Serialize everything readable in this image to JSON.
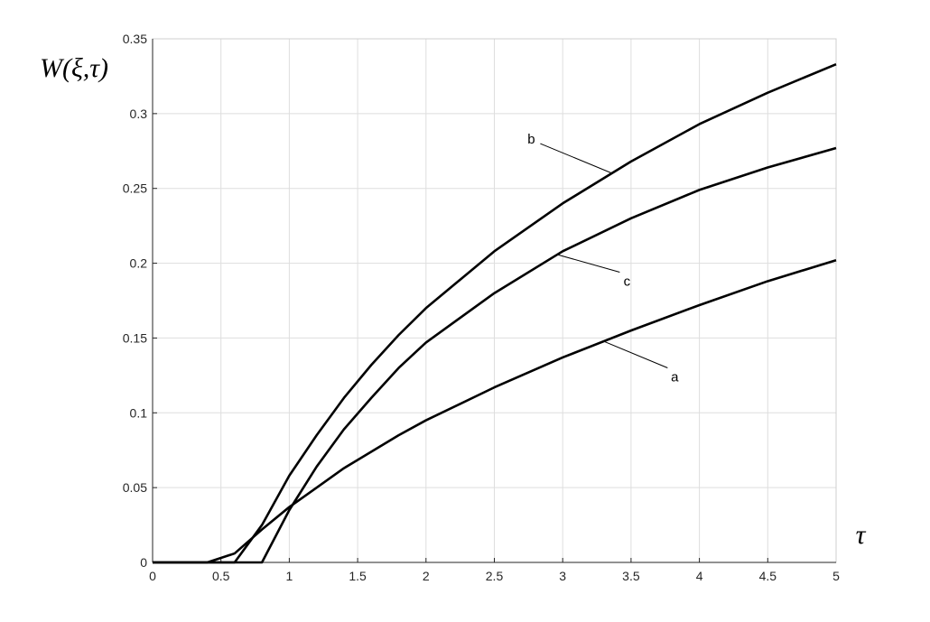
{
  "chart_data": {
    "type": "line",
    "y_label": "W(ξ,τ)",
    "x_label": "τ",
    "xlim": [
      0,
      5
    ],
    "ylim": [
      0,
      0.35
    ],
    "xticks": [
      0,
      0.5,
      1,
      1.5,
      2,
      2.5,
      3,
      3.5,
      4,
      4.5,
      5
    ],
    "yticks": [
      0,
      0.05,
      0.1,
      0.15,
      0.2,
      0.25,
      0.3,
      0.35
    ],
    "grid": true,
    "series": [
      {
        "name": "a",
        "color": "#000000",
        "x": [
          0,
          0.4,
          0.6,
          0.8,
          1,
          1.2,
          1.4,
          1.6,
          1.8,
          2,
          2.5,
          3,
          3.5,
          4,
          4.5,
          5
        ],
        "values": [
          0,
          0,
          0.006,
          0.022,
          0.037,
          0.05,
          0.063,
          0.074,
          0.085,
          0.095,
          0.117,
          0.137,
          0.155,
          0.172,
          0.188,
          0.202
        ]
      },
      {
        "name": "b",
        "color": "#000000",
        "x": [
          0,
          0.6,
          0.8,
          1,
          1.2,
          1.4,
          1.6,
          1.8,
          2,
          2.5,
          3,
          3.5,
          4,
          4.5,
          5
        ],
        "values": [
          0,
          0,
          0.025,
          0.058,
          0.085,
          0.11,
          0.132,
          0.152,
          0.17,
          0.208,
          0.24,
          0.268,
          0.293,
          0.314,
          0.333
        ]
      },
      {
        "name": "c",
        "color": "#000000",
        "x": [
          0,
          0.8,
          1,
          1.2,
          1.4,
          1.6,
          1.8,
          2,
          2.5,
          3,
          3.5,
          4,
          4.5,
          5
        ],
        "values": [
          0,
          0,
          0.035,
          0.064,
          0.089,
          0.11,
          0.13,
          0.147,
          0.18,
          0.208,
          0.23,
          0.249,
          0.264,
          0.277
        ]
      }
    ]
  }
}
